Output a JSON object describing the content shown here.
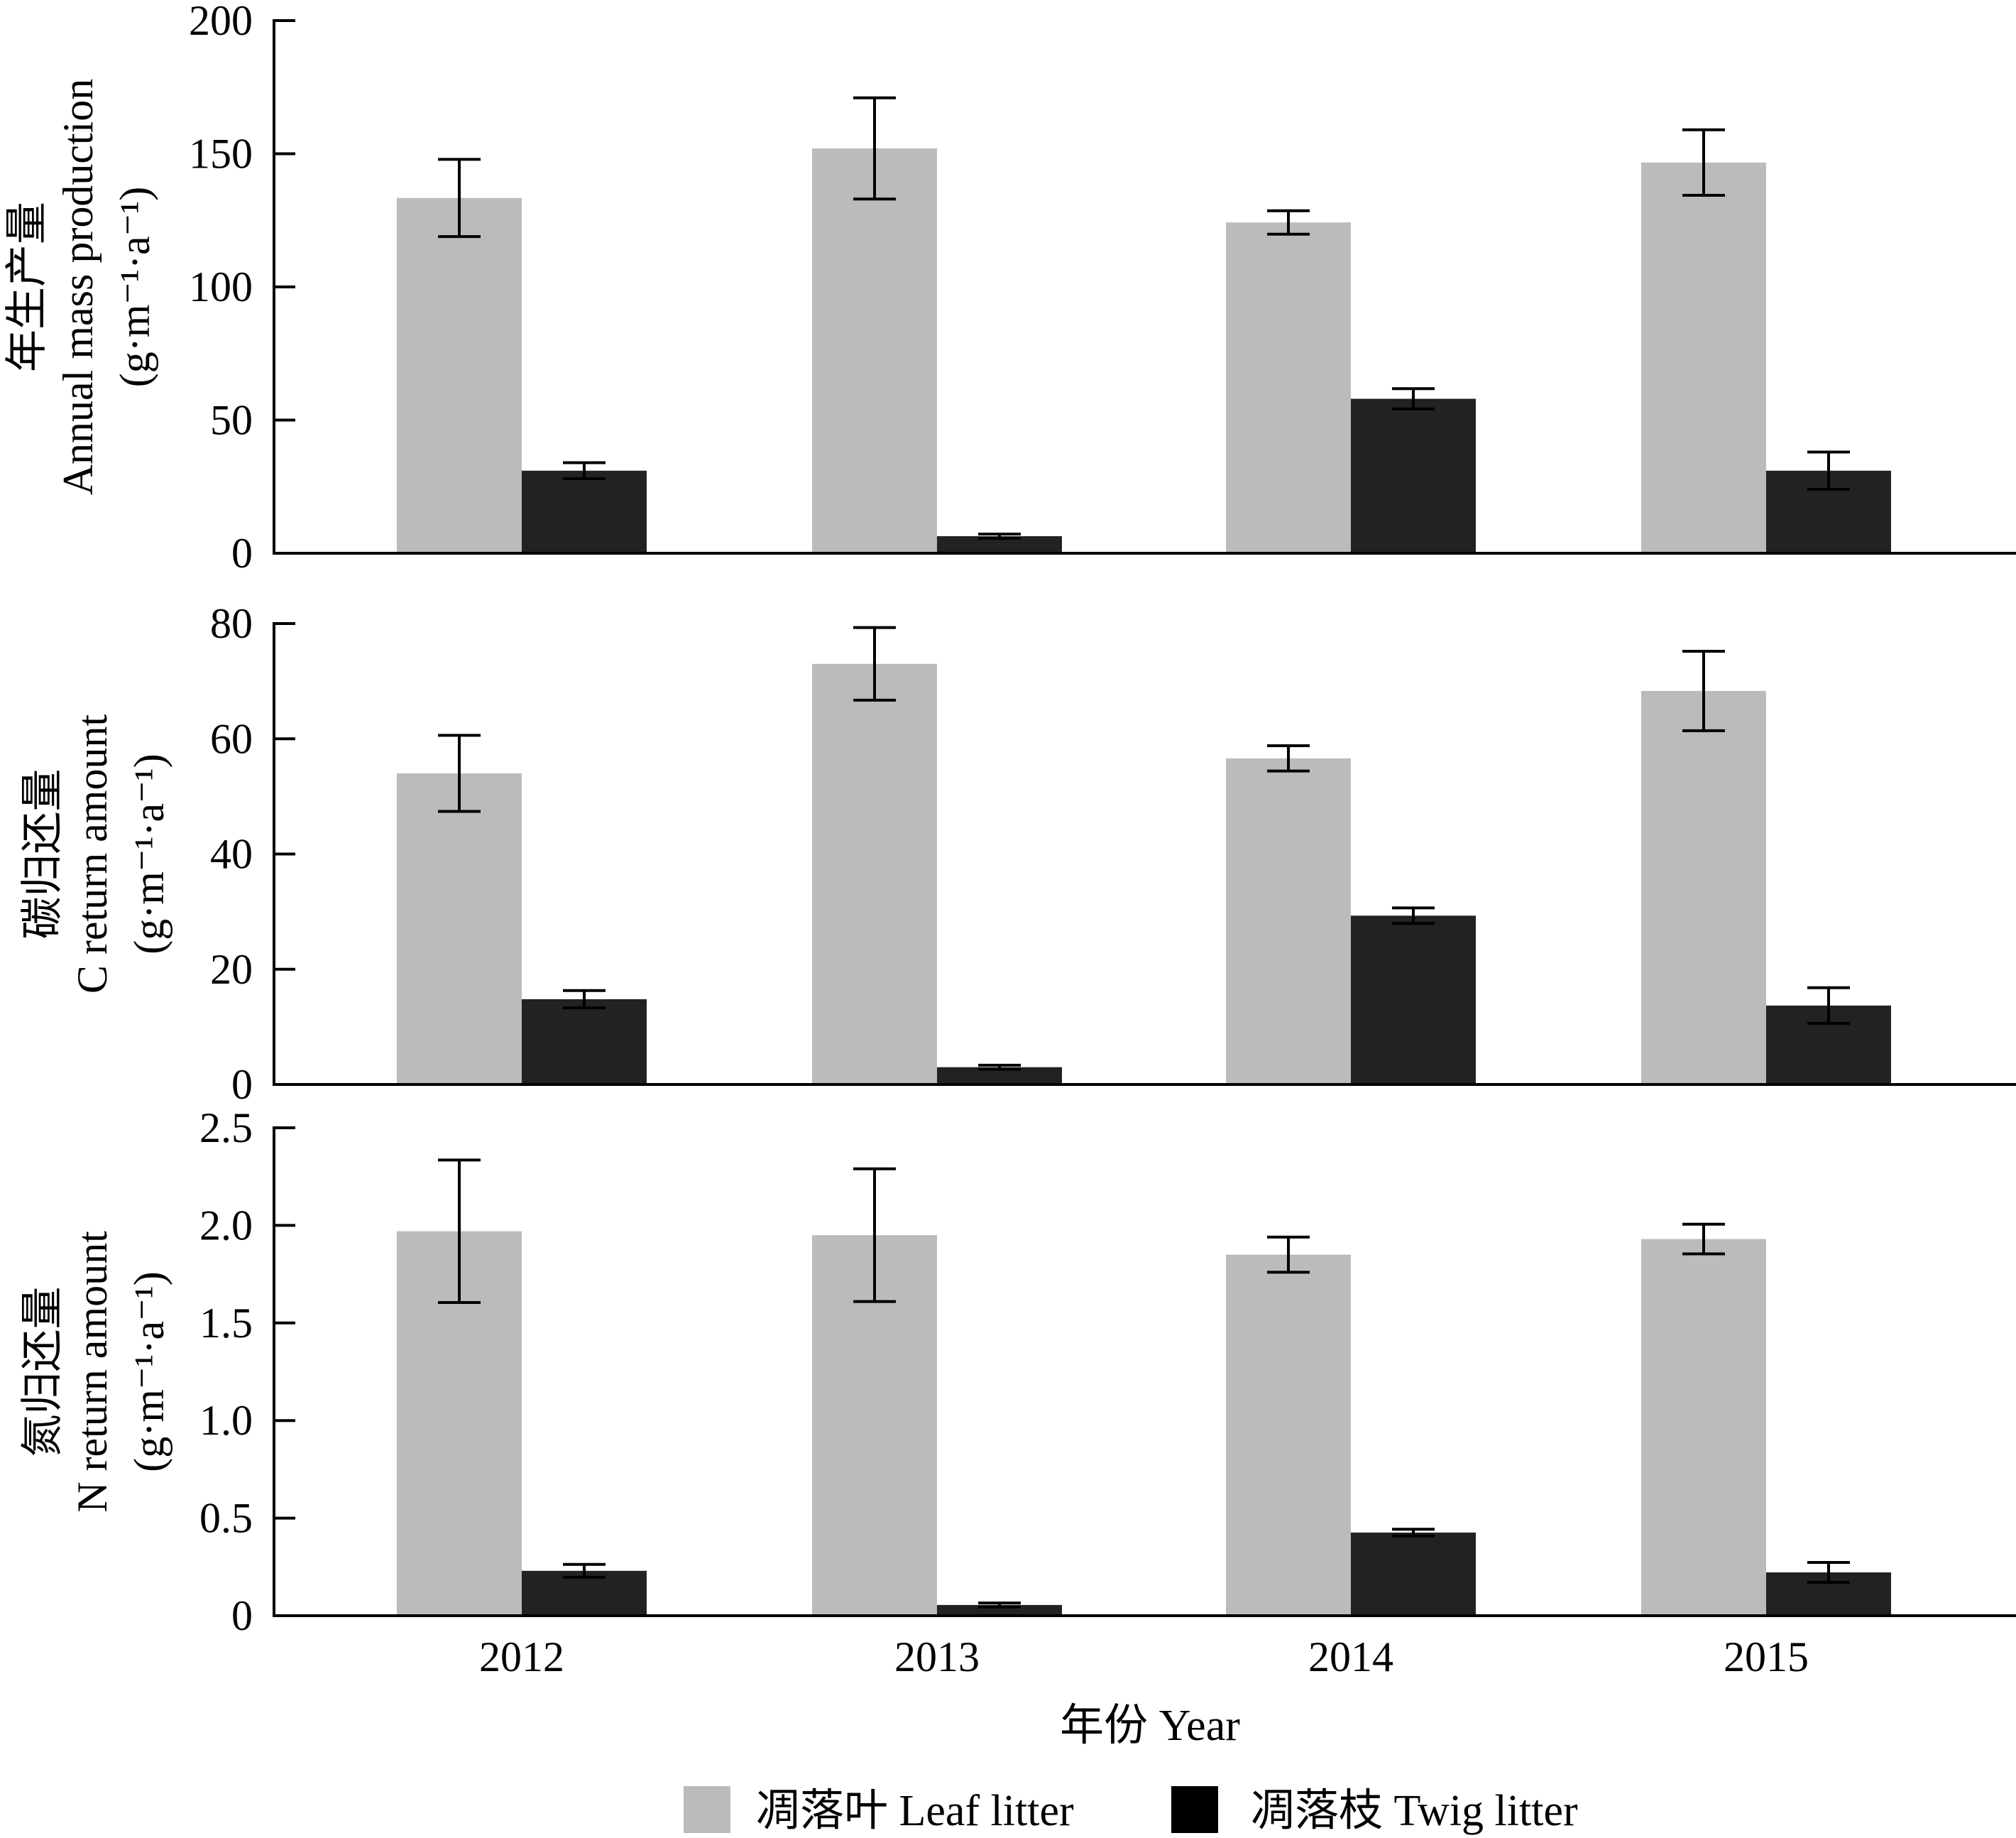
{
  "chart_data": {
    "type": "bar",
    "layout": "three vertically stacked panels sharing the x-axis",
    "categories": [
      "2012",
      "2013",
      "2014",
      "2015"
    ],
    "xlabel": "年份 Year",
    "legend": {
      "placement": "bottom-center",
      "entries": [
        {
          "name": "凋落叶 Leaf litter",
          "color": "#bbbbbb"
        },
        {
          "name": "凋落枝 Twig litter",
          "color": "#222222"
        }
      ]
    },
    "panels": [
      {
        "id": "mass",
        "ylabel_lines": [
          "年生产量",
          "Annual mass production",
          "(g·m⁻¹·a⁻¹)"
        ],
        "ylim": [
          0,
          200
        ],
        "yticks": [
          0,
          50,
          100,
          150,
          200
        ],
        "ytick_labels": [
          "0",
          "50",
          "100",
          "150",
          "200"
        ],
        "series": [
          {
            "name": "凋落叶 Leaf litter",
            "values": [
              133.4,
              152.0,
              124.2,
              146.7
            ],
            "errors": [
              14.5,
              19.0,
              4.4,
              12.3
            ]
          },
          {
            "name": "凋落枝 Twig litter",
            "values": [
              31.0,
              6.4,
              58.0,
              31.0
            ],
            "errors": [
              3.0,
              0.8,
              3.8,
              7.0
            ]
          }
        ]
      },
      {
        "id": "carbon",
        "ylabel_lines": [
          "碳归还量",
          "C return amount",
          "(g·m⁻¹·a⁻¹)"
        ],
        "ylim": [
          0,
          80
        ],
        "yticks": [
          0,
          20,
          40,
          60,
          80
        ],
        "ytick_labels": [
          "0",
          "20",
          "40",
          "60",
          "80"
        ],
        "series": [
          {
            "name": "凋落叶 Leaf litter",
            "values": [
              54.0,
              73.0,
              56.6,
              68.3
            ],
            "errors": [
              6.6,
              6.3,
              2.2,
              6.9
            ]
          },
          {
            "name": "凋落枝 Twig litter",
            "values": [
              14.8,
              3.0,
              29.3,
              13.7
            ],
            "errors": [
              1.5,
              0.35,
              1.35,
              3.1
            ]
          }
        ]
      },
      {
        "id": "nitrogen",
        "ylabel_lines": [
          "氮归还量",
          "N return amount",
          "(g·m⁻¹·a⁻¹)"
        ],
        "ylim": [
          0,
          2.5
        ],
        "yticks": [
          0,
          0.5,
          1.0,
          1.5,
          2.0,
          2.5
        ],
        "ytick_labels": [
          "0",
          "0.5",
          "1.0",
          "1.5",
          "2.0",
          "2.5"
        ],
        "series": [
          {
            "name": "凋落叶 Leaf litter",
            "values": [
              1.97,
              1.95,
              1.85,
              1.93
            ],
            "errors": [
              0.365,
              0.34,
              0.09,
              0.076
            ]
          },
          {
            "name": "凋落枝 Twig litter",
            "values": [
              0.23,
              0.055,
              0.426,
              0.222
            ],
            "errors": [
              0.033,
              0.01,
              0.017,
              0.051
            ]
          }
        ]
      }
    ]
  }
}
